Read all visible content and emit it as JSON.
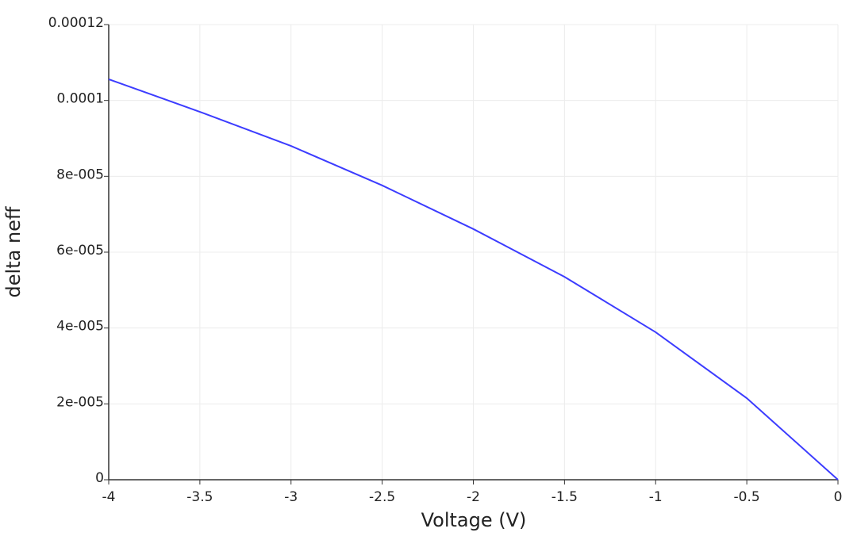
{
  "chart_data": {
    "type": "line",
    "xlabel": "Voltage (V)",
    "ylabel": "delta neff",
    "x": [
      -4,
      -3.5,
      -3,
      -2.5,
      -2,
      -1.5,
      -1,
      -0.5,
      0
    ],
    "values": [
      0.0001056,
      9.7e-05,
      8.8e-05,
      7.76e-05,
      6.61e-05,
      5.35e-05,
      3.89e-05,
      2.15e-05,
      0
    ],
    "color": "#3c3cff",
    "xlim": [
      -4,
      0
    ],
    "xticks": [
      -4,
      -3.5,
      -3,
      -2.5,
      -2,
      -1.5,
      -1,
      -0.5,
      0
    ],
    "ylim": [
      0,
      0.00012
    ],
    "yticks": [
      0,
      {
        "value": 2e-05,
        "label": "2e-005"
      },
      {
        "value": 4e-05,
        "label": "4e-005"
      },
      {
        "value": 6e-05,
        "label": "6e-005"
      },
      {
        "value": 8e-05,
        "label": "8e-005"
      },
      0.0001,
      0.00012
    ],
    "grid": true
  }
}
